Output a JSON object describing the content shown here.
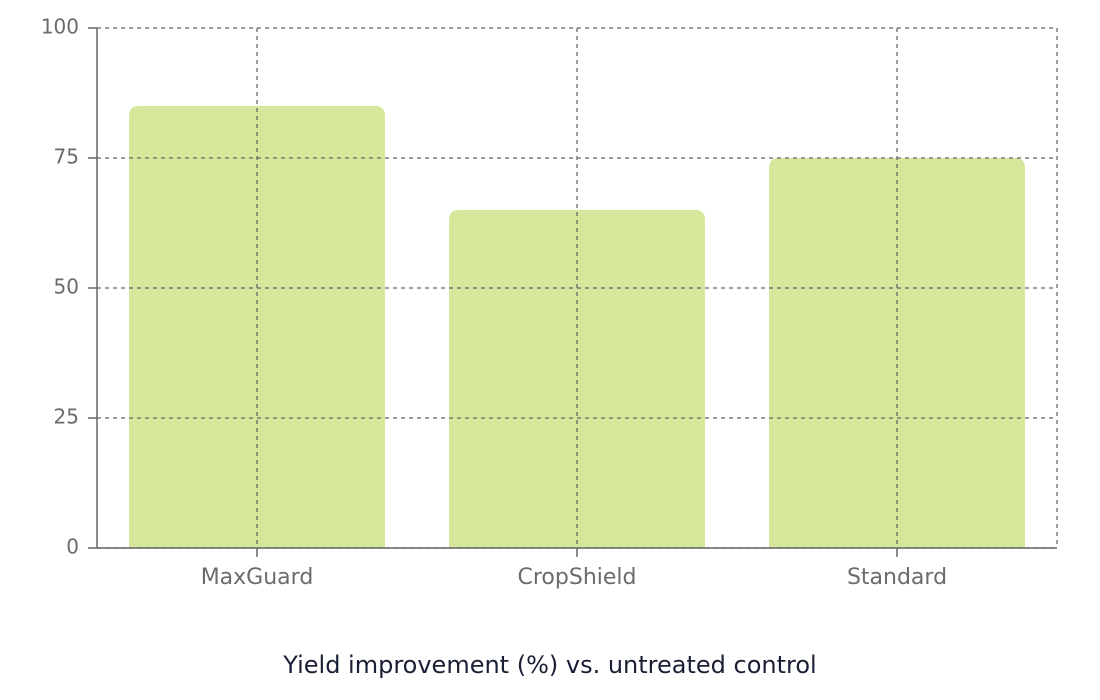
{
  "chart_data": {
    "type": "bar",
    "title": "Yield improvement (%) vs. untreated control",
    "categories": [
      "MaxGuard",
      "CropShield",
      "Standard"
    ],
    "values": [
      85,
      65,
      75
    ],
    "color": "#d4e79a",
    "ylim": [
      0,
      100
    ],
    "yticks": [
      0,
      25,
      50,
      75,
      100
    ],
    "grid": true
  }
}
